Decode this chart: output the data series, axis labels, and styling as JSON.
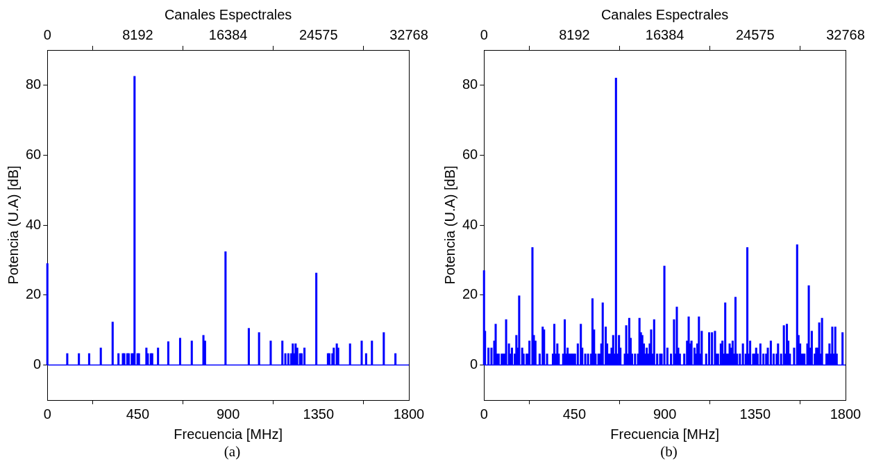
{
  "chart_data": [
    {
      "type": "bar",
      "xlabel": "Frecuencia [MHz]",
      "x2label": "Canales Espectrales",
      "ylabel": "Potencia (U.A) [dB]",
      "color": "#0000ff",
      "x": [
        0,
        99,
        157,
        208,
        266,
        325,
        354,
        376,
        383,
        398,
        405,
        420,
        427,
        434,
        449,
        456,
        493,
        500,
        515,
        522,
        551,
        602,
        661,
        719,
        777,
        785,
        887,
        1003,
        1054,
        1112,
        1170,
        1185,
        1200,
        1214,
        1222,
        1229,
        1236,
        1244,
        1258,
        1266,
        1280,
        1339,
        1397,
        1404,
        1419,
        1426,
        1441,
        1448,
        1507,
        1565,
        1587,
        1616,
        1675,
        1733
      ],
      "values": [
        29,
        3.3,
        3.3,
        3.3,
        4.9,
        12.3,
        3.3,
        3.3,
        3.3,
        3.3,
        3.3,
        3.3,
        3.3,
        82.5,
        3.3,
        3.3,
        4.9,
        3.3,
        3.3,
        3.3,
        4.9,
        6.7,
        7.7,
        6.9,
        8.5,
        6.9,
        32.4,
        10.5,
        9.3,
        6.9,
        6.9,
        3.3,
        3.3,
        3.3,
        6.1,
        3.3,
        6.1,
        4.9,
        3.3,
        3.3,
        4.9,
        26.3,
        3.3,
        3.3,
        3.3,
        4.9,
        6.1,
        4.9,
        6.1,
        6.9,
        3.3,
        6.9,
        9.3,
        3.3
      ],
      "xlim": [
        0,
        1800
      ],
      "xticks": [
        0,
        450,
        900,
        1350,
        1800
      ],
      "x2lim": [
        0,
        32768
      ],
      "x2ticks": [
        0,
        8192,
        16384,
        24575,
        32768
      ],
      "ylim": [
        -10,
        90
      ],
      "yticks": [
        0,
        20,
        40,
        60,
        80
      ],
      "ref_lines": [
        {
          "axis": "y",
          "value": 0,
          "color": "#0000ff"
        }
      ],
      "annotations": [
        "(a)"
      ]
    },
    {
      "type": "bar",
      "xlabel": "Frecuencia [MHz]",
      "x2label": "Canales Espectrales",
      "ylabel": "Potencia (U.A) [dB]",
      "color": "#0000ff",
      "x": [
        0,
        5,
        22,
        37,
        51,
        58,
        66,
        73,
        88,
        95,
        102,
        110,
        124,
        131,
        139,
        153,
        161,
        168,
        175,
        190,
        197,
        212,
        219,
        226,
        241,
        248,
        256,
        277,
        292,
        299,
        314,
        343,
        350,
        358,
        365,
        372,
        394,
        402,
        409,
        416,
        423,
        431,
        438,
        445,
        453,
        467,
        482,
        489,
        504,
        518,
        533,
        540,
        548,
        555,
        570,
        577,
        584,
        591,
        606,
        613,
        620,
        627,
        635,
        643,
        650,
        657,
        664,
        672,
        679,
        701,
        708,
        716,
        723,
        730,
        737,
        752,
        767,
        774,
        781,
        788,
        796,
        803,
        810,
        818,
        825,
        832,
        840,
        847,
        862,
        877,
        884,
        898,
        913,
        931,
        946,
        953,
        960,
        967,
        975,
        997,
        1011,
        1019,
        1026,
        1033,
        1048,
        1055,
        1062,
        1070,
        1077,
        1084,
        1106,
        1121,
        1135,
        1150,
        1157,
        1165,
        1179,
        1187,
        1194,
        1201,
        1209,
        1216,
        1223,
        1231,
        1238,
        1245,
        1252,
        1260,
        1274,
        1289,
        1303,
        1311,
        1318,
        1325,
        1340,
        1347,
        1355,
        1362,
        1376,
        1391,
        1405,
        1413,
        1428,
        1442,
        1457,
        1464,
        1479,
        1493,
        1501,
        1508,
        1515,
        1523,
        1544,
        1559,
        1566,
        1574,
        1581,
        1588,
        1595,
        1610,
        1617,
        1625,
        1632,
        1647,
        1654,
        1661,
        1669,
        1676,
        1683,
        1705,
        1712,
        1720,
        1727,
        1734,
        1742,
        1749,
        1756,
        1785
      ],
      "values": [
        27,
        9.7,
        4.9,
        4.9,
        6.9,
        11.7,
        3.2,
        3.2,
        3.2,
        3.2,
        3.2,
        13,
        6.1,
        3.2,
        4.9,
        3.2,
        8.5,
        4.9,
        19.8,
        4.9,
        3.2,
        3.2,
        3.2,
        6.9,
        33.6,
        8.5,
        6.9,
        3.2,
        10.9,
        10.1,
        3.2,
        3.2,
        11.7,
        3.2,
        6.1,
        3.2,
        3.2,
        13,
        3.2,
        4.9,
        3.2,
        3.2,
        3.2,
        3.2,
        3.2,
        6.1,
        11.7,
        4.9,
        3.2,
        3.2,
        3.2,
        19,
        10.1,
        3.2,
        3.2,
        3.2,
        6.1,
        17.8,
        10.9,
        6.1,
        3.2,
        3.2,
        4.9,
        8.5,
        3.2,
        82,
        3.2,
        8.5,
        4.9,
        3.2,
        11.3,
        3.2,
        13.4,
        7.7,
        3.2,
        3.2,
        3.2,
        13.4,
        9.3,
        8.5,
        6.1,
        3.2,
        4.9,
        3.2,
        6.1,
        10.1,
        3.2,
        13,
        3.2,
        3.2,
        3.2,
        28.3,
        4.9,
        3.2,
        13,
        3.2,
        16.6,
        4.9,
        3.2,
        3.2,
        6.9,
        13.8,
        6.1,
        6.9,
        4.9,
        3.2,
        6.1,
        13.8,
        3.2,
        9.7,
        3.2,
        9.3,
        9.3,
        9.7,
        3.2,
        3.2,
        6.1,
        6.9,
        3.2,
        17.8,
        3.2,
        3.2,
        6.1,
        4.9,
        6.9,
        3.2,
        19.4,
        3.2,
        3.2,
        6.1,
        3.2,
        33.6,
        3.2,
        6.9,
        3.2,
        3.2,
        4.9,
        3.2,
        6.1,
        3.2,
        3.2,
        4.9,
        6.9,
        3.2,
        3.2,
        6.1,
        3.2,
        11.3,
        3.2,
        11.7,
        6.9,
        3.2,
        4.9,
        34.4,
        8.5,
        6.1,
        3.2,
        3.2,
        3.2,
        6.1,
        22.7,
        4.9,
        9.7,
        3.2,
        4.9,
        4.9,
        12.1,
        3.2,
        13.4,
        3.2,
        3.2,
        6.1,
        3.2,
        10.9,
        3.2,
        10.9,
        3.2,
        9.3
      ],
      "xlim": [
        0,
        1800
      ],
      "xticks": [
        0,
        450,
        900,
        1350,
        1800
      ],
      "x2lim": [
        0,
        32768
      ],
      "x2ticks": [
        0,
        8192,
        16384,
        24575,
        32768
      ],
      "ylim": [
        -10,
        90
      ],
      "yticks": [
        0,
        20,
        40,
        60,
        80
      ],
      "ref_lines": [
        {
          "axis": "y",
          "value": 0,
          "color": "#0000ff"
        }
      ],
      "annotations": [
        "(b)"
      ]
    }
  ]
}
